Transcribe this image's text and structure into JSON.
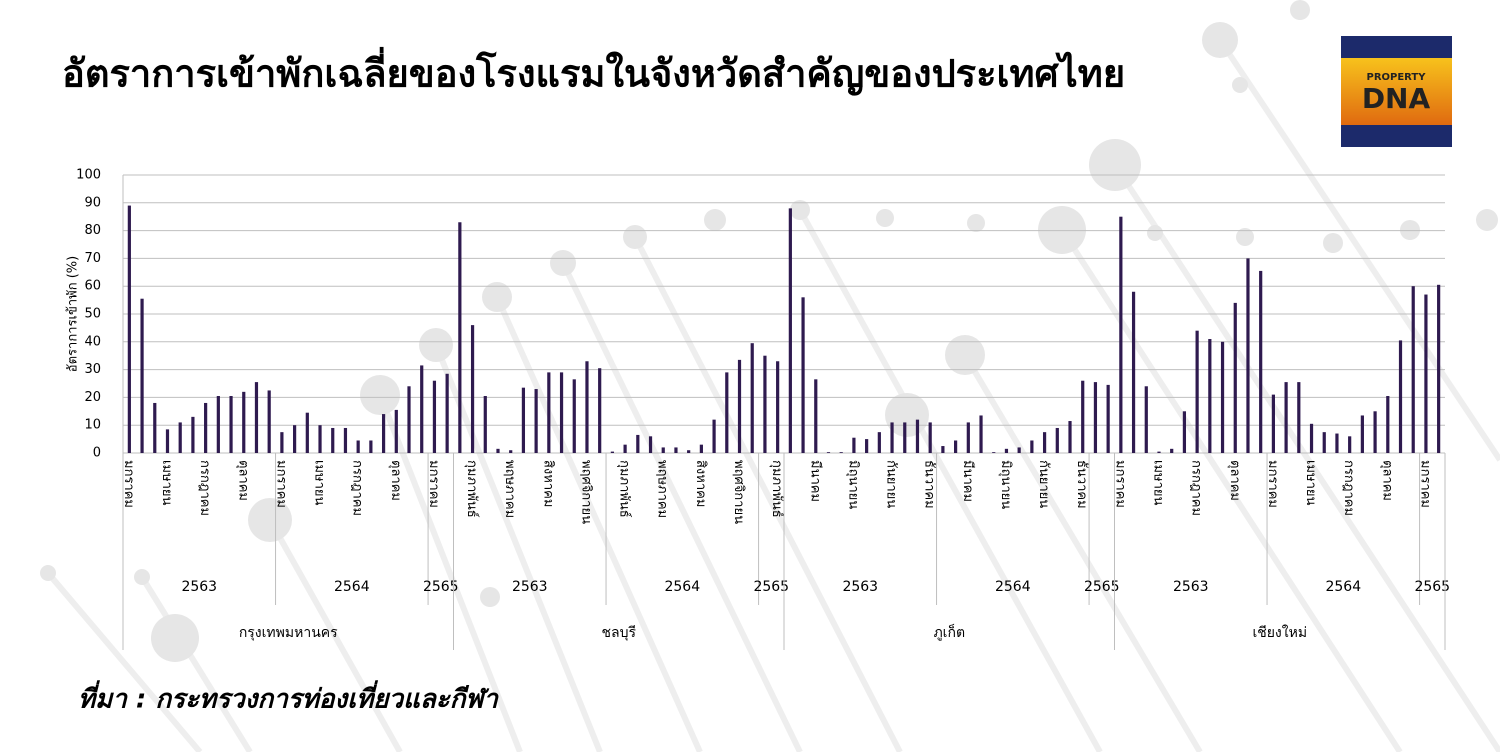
{
  "title": "อัตราการเข้าพักเฉลี่ยของโรงแรมในจังหวัดสำคัญของประเทศไทย",
  "source": "ที่มา : กระทรวงการท่องเที่ยวและกีฬา",
  "logo": {
    "top": "PROPERTY",
    "bottom": "DNA"
  },
  "chart_data": {
    "type": "bar",
    "y_label": "อัตราการเข้าพัก (%)",
    "color": "#2e1a4f",
    "ylim": [
      0,
      100
    ],
    "yticks": [
      0,
      10,
      20,
      30,
      40,
      50,
      60,
      70,
      80,
      90,
      100
    ],
    "grid": true,
    "groups": [
      {
        "name": "กรุงเทพมหานคร",
        "years": [
          {
            "name": "2563",
            "categories": [
              "มกราคม",
              null,
              null,
              "เมษายน",
              null,
              null,
              "กรกฎาคม",
              null,
              null,
              "ตุลาคม",
              null,
              null
            ],
            "values": [
              89,
              55.5,
              18,
              8.5,
              11,
              13,
              18,
              20.5,
              20.5,
              22,
              25.5,
              22.5
            ]
          },
          {
            "name": "2564",
            "categories": [
              "มกราคม",
              null,
              null,
              "เมษายน",
              null,
              null,
              "กรกฎาคม",
              null,
              null,
              "ตุลาคม",
              null,
              null
            ],
            "values": [
              7.5,
              10,
              14.5,
              10,
              9,
              9,
              4.5,
              4.5,
              14,
              15.5,
              24,
              31.5
            ]
          },
          {
            "name": "2565",
            "categories": [
              "มกราคม",
              null
            ],
            "values": [
              26,
              28.5
            ]
          }
        ]
      },
      {
        "name": "ชลบุรี",
        "years": [
          {
            "name": "2563",
            "categories": [
              null,
              "กุมภาพันธ์",
              null,
              null,
              "พฤษภาคม",
              null,
              null,
              "สิงหาคม",
              null,
              null,
              "พฤศจิกายน",
              null
            ],
            "values": [
              83,
              46,
              20.5,
              1.5,
              1,
              23.5,
              23,
              29,
              29,
              26.5,
              33,
              30.5
            ]
          },
          {
            "name": "2564",
            "categories": [
              null,
              "กุมภาพันธ์",
              null,
              null,
              "พฤษภาคม",
              null,
              null,
              "สิงหาคม",
              null,
              null,
              "พฤศจิกายน",
              null
            ],
            "values": [
              0.5,
              3,
              6.5,
              6,
              2,
              2,
              1,
              3,
              12,
              29,
              33.5,
              39.5
            ]
          },
          {
            "name": "2565",
            "categories": [
              null,
              "กุมภาพันธ์"
            ],
            "values": [
              35,
              33
            ]
          }
        ]
      },
      {
        "name": "ภูเก็ต",
        "years": [
          {
            "name": "2563",
            "categories": [
              null,
              null,
              "มีนาคม",
              null,
              null,
              "มิถุนายน",
              null,
              null,
              "กันยายน",
              null,
              null,
              "ธันวาคม"
            ],
            "values": [
              88,
              56,
              26.5,
              0.3,
              0.3,
              5.5,
              5,
              7.5,
              11,
              11,
              12,
              11
            ]
          },
          {
            "name": "2564",
            "categories": [
              null,
              null,
              "มีนาคม",
              null,
              null,
              "มิถุนายน",
              null,
              null,
              "กันยายน",
              null,
              null,
              "ธันวาคม"
            ],
            "values": [
              2.5,
              4.5,
              11,
              13.5,
              0.3,
              1.5,
              2,
              4.5,
              7.5,
              9,
              11.5,
              26
            ]
          },
          {
            "name": "2565",
            "categories": [
              null,
              null
            ],
            "values": [
              25.5,
              24.5
            ]
          }
        ]
      },
      {
        "name": "เชียงใหม่",
        "years": [
          {
            "name": "2563",
            "categories": [
              "มกราคม",
              null,
              null,
              "เมษายน",
              null,
              null,
              "กรกฎาคม",
              null,
              null,
              "ตุลาคม",
              null,
              null
            ],
            "values": [
              85,
              58,
              24,
              0.5,
              1.5,
              15,
              44,
              41,
              40,
              54,
              70,
              65.5
            ]
          },
          {
            "name": "2564",
            "categories": [
              "มกราคม",
              null,
              null,
              "เมษายน",
              null,
              null,
              "กรกฎาคม",
              null,
              null,
              "ตุลาคม",
              null,
              null
            ],
            "values": [
              21,
              25.5,
              25.5,
              10.5,
              7.5,
              7,
              6,
              13.5,
              15,
              20.5,
              40.5,
              60
            ]
          },
          {
            "name": "2565",
            "categories": [
              "มกราคม",
              null
            ],
            "values": [
              57,
              60.5
            ]
          }
        ]
      }
    ]
  }
}
